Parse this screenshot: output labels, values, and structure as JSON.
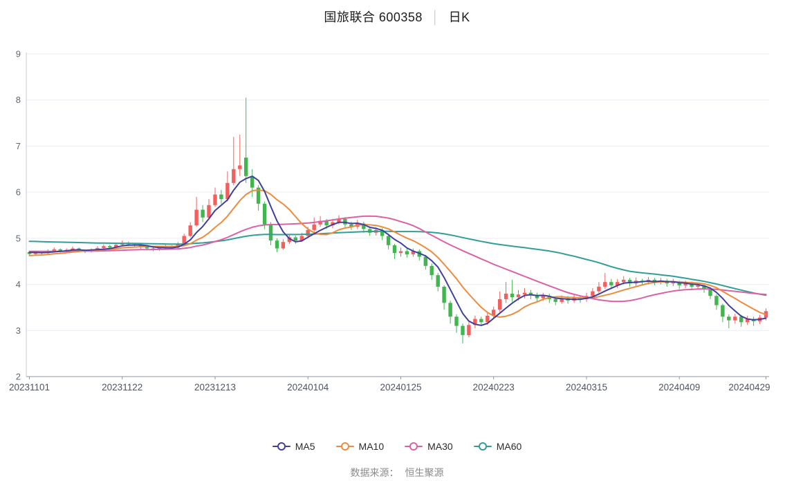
{
  "header": {
    "stock_title": "国旅联合 600358",
    "separator": "│",
    "kline_label": "日K"
  },
  "footer": {
    "label": "数据来源：",
    "value": "恒生聚源"
  },
  "chart_data": {
    "type": "candlestick",
    "title": "国旅联合 600358 日K",
    "ylabel": "",
    "xlabel": "",
    "ylim": [
      2,
      9
    ],
    "y_ticks": [
      2,
      3,
      4,
      5,
      6,
      7,
      8,
      9
    ],
    "grid": "horizontal",
    "legend_position": "bottom",
    "up_color": "#f25f5c",
    "down_color": "#41b64e",
    "x_tick_labels": [
      "20231101",
      "20231122",
      "20231213",
      "20240104",
      "20240125",
      "20240223",
      "20240315",
      "20240409",
      "20240429"
    ],
    "x_tick_indices": [
      0,
      15,
      30,
      45,
      60,
      75,
      90,
      105,
      119
    ],
    "ohlc_format": "[open, close, low, high]",
    "dates": [
      "20231101",
      "20231102",
      "20231103",
      "20231106",
      "20231107",
      "20231108",
      "20231109",
      "20231110",
      "20231113",
      "20231114",
      "20231115",
      "20231116",
      "20231117",
      "20231120",
      "20231121",
      "20231122",
      "20231123",
      "20231124",
      "20231127",
      "20231128",
      "20231129",
      "20231130",
      "20231201",
      "20231204",
      "20231205",
      "20231206",
      "20231207",
      "20231208",
      "20231211",
      "20231212",
      "20231213",
      "20231214",
      "20231215",
      "20231218",
      "20231219",
      "20231220",
      "20231221",
      "20231222",
      "20231225",
      "20231226",
      "20231227",
      "20231228",
      "20231229",
      "20240102",
      "20240103",
      "20240104",
      "20240105",
      "20240108",
      "20240109",
      "20240110",
      "20240111",
      "20240112",
      "20240115",
      "20240116",
      "20240117",
      "20240118",
      "20240119",
      "20240122",
      "20240123",
      "20240124",
      "20240125",
      "20240126",
      "20240129",
      "20240130",
      "20240131",
      "20240201",
      "20240202",
      "20240205",
      "20240206",
      "20240207",
      "20240208",
      "20240219",
      "20240220",
      "20240221",
      "20240222",
      "20240223",
      "20240226",
      "20240227",
      "20240228",
      "20240229",
      "20240301",
      "20240304",
      "20240305",
      "20240306",
      "20240307",
      "20240308",
      "20240311",
      "20240312",
      "20240313",
      "20240314",
      "20240315",
      "20240318",
      "20240319",
      "20240320",
      "20240321",
      "20240322",
      "20240325",
      "20240326",
      "20240327",
      "20240328",
      "20240329",
      "20240401",
      "20240402",
      "20240403",
      "20240408",
      "20240409",
      "20240410",
      "20240411",
      "20240412",
      "20240415",
      "20240416",
      "20240417",
      "20240418",
      "20240419",
      "20240422",
      "20240423",
      "20240424",
      "20240425",
      "20240426",
      "20240429"
    ],
    "ohlc": [
      [
        4.7,
        4.66,
        4.62,
        4.73
      ],
      [
        4.66,
        4.7,
        4.64,
        4.73
      ],
      [
        4.7,
        4.68,
        4.65,
        4.72
      ],
      [
        4.68,
        4.73,
        4.66,
        4.76
      ],
      [
        4.73,
        4.76,
        4.7,
        4.8
      ],
      [
        4.76,
        4.72,
        4.69,
        4.78
      ],
      [
        4.72,
        4.75,
        4.7,
        4.78
      ],
      [
        4.75,
        4.78,
        4.72,
        4.82
      ],
      [
        4.78,
        4.74,
        4.7,
        4.8
      ],
      [
        4.74,
        4.71,
        4.68,
        4.76
      ],
      [
        4.71,
        4.75,
        4.69,
        4.78
      ],
      [
        4.75,
        4.79,
        4.72,
        4.83
      ],
      [
        4.79,
        4.83,
        4.76,
        4.87
      ],
      [
        4.83,
        4.8,
        4.77,
        4.86
      ],
      [
        4.8,
        4.86,
        4.78,
        4.9
      ],
      [
        4.86,
        4.9,
        4.83,
        4.95
      ],
      [
        4.9,
        4.87,
        4.83,
        4.93
      ],
      [
        4.87,
        4.84,
        4.8,
        4.9
      ],
      [
        4.84,
        4.81,
        4.77,
        4.87
      ],
      [
        4.81,
        4.78,
        4.74,
        4.84
      ],
      [
        4.78,
        4.76,
        4.72,
        4.81
      ],
      [
        4.76,
        4.8,
        4.73,
        4.84
      ],
      [
        4.8,
        4.82,
        4.76,
        4.86
      ],
      [
        4.82,
        4.8,
        4.75,
        4.85
      ],
      [
        4.8,
        4.88,
        4.78,
        4.92
      ],
      [
        4.88,
        5.05,
        4.86,
        5.1
      ],
      [
        5.05,
        5.28,
        5.02,
        5.35
      ],
      [
        5.28,
        5.62,
        5.25,
        5.9
      ],
      [
        5.62,
        5.45,
        5.35,
        5.72
      ],
      [
        5.45,
        5.72,
        5.4,
        5.85
      ],
      [
        5.72,
        5.95,
        5.68,
        6.1
      ],
      [
        5.95,
        5.85,
        5.75,
        6.05
      ],
      [
        5.85,
        6.2,
        5.8,
        6.45
      ],
      [
        6.2,
        6.5,
        6.15,
        7.2
      ],
      [
        6.5,
        6.58,
        6.35,
        7.25
      ],
      [
        6.75,
        6.35,
        6.2,
        8.05
      ],
      [
        6.35,
        6.1,
        5.9,
        6.5
      ],
      [
        6.1,
        5.75,
        5.6,
        6.15
      ],
      [
        5.75,
        5.3,
        5.2,
        5.8
      ],
      [
        5.3,
        4.95,
        4.85,
        5.35
      ],
      [
        4.95,
        4.78,
        4.7,
        5.0
      ],
      [
        4.78,
        4.92,
        4.75,
        4.98
      ],
      [
        4.92,
        5.02,
        4.88,
        5.08
      ],
      [
        5.02,
        4.95,
        4.88,
        5.06
      ],
      [
        4.95,
        5.05,
        4.92,
        5.12
      ],
      [
        5.05,
        5.18,
        5.0,
        5.25
      ],
      [
        5.18,
        5.3,
        5.14,
        5.45
      ],
      [
        5.3,
        5.38,
        5.25,
        5.48
      ],
      [
        5.38,
        5.28,
        5.2,
        5.42
      ],
      [
        5.28,
        5.35,
        5.22,
        5.42
      ],
      [
        5.35,
        5.42,
        5.3,
        5.5
      ],
      [
        5.42,
        5.3,
        5.24,
        5.46
      ],
      [
        5.3,
        5.25,
        5.18,
        5.36
      ],
      [
        5.25,
        5.32,
        5.2,
        5.4
      ],
      [
        5.32,
        5.2,
        5.12,
        5.36
      ],
      [
        5.2,
        5.12,
        5.05,
        5.26
      ],
      [
        5.12,
        5.18,
        5.06,
        5.24
      ],
      [
        5.18,
        5.05,
        4.96,
        5.22
      ],
      [
        5.05,
        4.85,
        4.76,
        5.08
      ],
      [
        4.85,
        4.68,
        4.55,
        4.88
      ],
      [
        4.68,
        4.72,
        4.6,
        4.8
      ],
      [
        4.72,
        4.65,
        4.58,
        4.78
      ],
      [
        4.65,
        4.72,
        4.6,
        4.78
      ],
      [
        4.72,
        4.6,
        4.52,
        4.76
      ],
      [
        4.6,
        4.4,
        4.32,
        4.64
      ],
      [
        4.4,
        4.2,
        4.1,
        4.45
      ],
      [
        4.2,
        3.95,
        3.85,
        4.25
      ],
      [
        3.95,
        3.6,
        3.45,
        3.98
      ],
      [
        3.6,
        3.3,
        3.15,
        3.65
      ],
      [
        3.3,
        3.1,
        2.95,
        3.35
      ],
      [
        3.1,
        2.9,
        2.72,
        3.15
      ],
      [
        2.9,
        3.12,
        2.85,
        3.18
      ],
      [
        3.12,
        3.25,
        3.05,
        3.32
      ],
      [
        3.25,
        3.18,
        3.1,
        3.3
      ],
      [
        3.18,
        3.32,
        3.12,
        3.38
      ],
      [
        3.32,
        3.45,
        3.28,
        3.52
      ],
      [
        3.45,
        3.68,
        3.4,
        3.85
      ],
      [
        3.68,
        3.8,
        3.6,
        4.05
      ],
      [
        3.8,
        3.72,
        3.62,
        4.1
      ],
      [
        3.72,
        3.78,
        3.65,
        3.88
      ],
      [
        3.78,
        3.82,
        3.7,
        3.92
      ],
      [
        3.82,
        3.76,
        3.68,
        3.88
      ],
      [
        3.76,
        3.7,
        3.62,
        3.82
      ],
      [
        3.7,
        3.75,
        3.64,
        3.82
      ],
      [
        3.75,
        3.68,
        3.6,
        3.8
      ],
      [
        3.68,
        3.62,
        3.55,
        3.74
      ],
      [
        3.62,
        3.7,
        3.58,
        3.76
      ],
      [
        3.7,
        3.65,
        3.58,
        3.75
      ],
      [
        3.65,
        3.72,
        3.6,
        3.78
      ],
      [
        3.72,
        3.68,
        3.6,
        3.76
      ],
      [
        3.68,
        3.75,
        3.62,
        3.82
      ],
      [
        3.75,
        3.85,
        3.7,
        3.92
      ],
      [
        3.85,
        3.95,
        3.8,
        4.05
      ],
      [
        3.95,
        4.05,
        3.9,
        4.25
      ],
      [
        4.05,
        3.98,
        3.9,
        4.12
      ],
      [
        3.98,
        4.05,
        3.92,
        4.12
      ],
      [
        4.05,
        4.1,
        4.0,
        4.18
      ],
      [
        4.1,
        4.02,
        3.95,
        4.14
      ],
      [
        4.02,
        4.08,
        3.96,
        4.15
      ],
      [
        4.08,
        4.05,
        3.98,
        4.12
      ],
      [
        4.05,
        4.1,
        4.0,
        4.16
      ],
      [
        4.1,
        4.05,
        3.98,
        4.14
      ],
      [
        4.05,
        4.08,
        4.0,
        4.14
      ],
      [
        4.08,
        4.02,
        3.95,
        4.12
      ],
      [
        4.02,
        4.05,
        3.96,
        4.12
      ],
      [
        4.05,
        3.98,
        3.9,
        4.08
      ],
      [
        3.98,
        4.02,
        3.92,
        4.08
      ],
      [
        4.02,
        3.95,
        3.88,
        4.06
      ],
      [
        3.95,
        3.98,
        3.9,
        4.04
      ],
      [
        3.98,
        3.9,
        3.82,
        4.02
      ],
      [
        3.9,
        3.75,
        3.68,
        3.94
      ],
      [
        3.75,
        3.55,
        3.45,
        3.78
      ],
      [
        3.55,
        3.3,
        3.18,
        3.58
      ],
      [
        3.3,
        3.22,
        3.05,
        3.35
      ],
      [
        3.22,
        3.3,
        3.15,
        3.36
      ],
      [
        3.3,
        3.18,
        3.08,
        3.34
      ],
      [
        3.18,
        3.25,
        3.12,
        3.32
      ],
      [
        3.25,
        3.2,
        3.1,
        3.3
      ],
      [
        3.2,
        3.28,
        3.14,
        3.34
      ],
      [
        3.28,
        3.42,
        3.22,
        3.48
      ]
    ],
    "ma_series": [
      {
        "name": "MA5",
        "window": 5,
        "seed": 4.7,
        "color": "#3f3f9d"
      },
      {
        "name": "MA10",
        "window": 10,
        "seed": 4.62,
        "color": "#ef8a3c"
      },
      {
        "name": "MA30",
        "window": 30,
        "seed": 4.72,
        "color": "#dd5fa4"
      },
      {
        "name": "MA60",
        "window": 60,
        "seed": 4.94,
        "color": "#2f9e97"
      }
    ]
  }
}
